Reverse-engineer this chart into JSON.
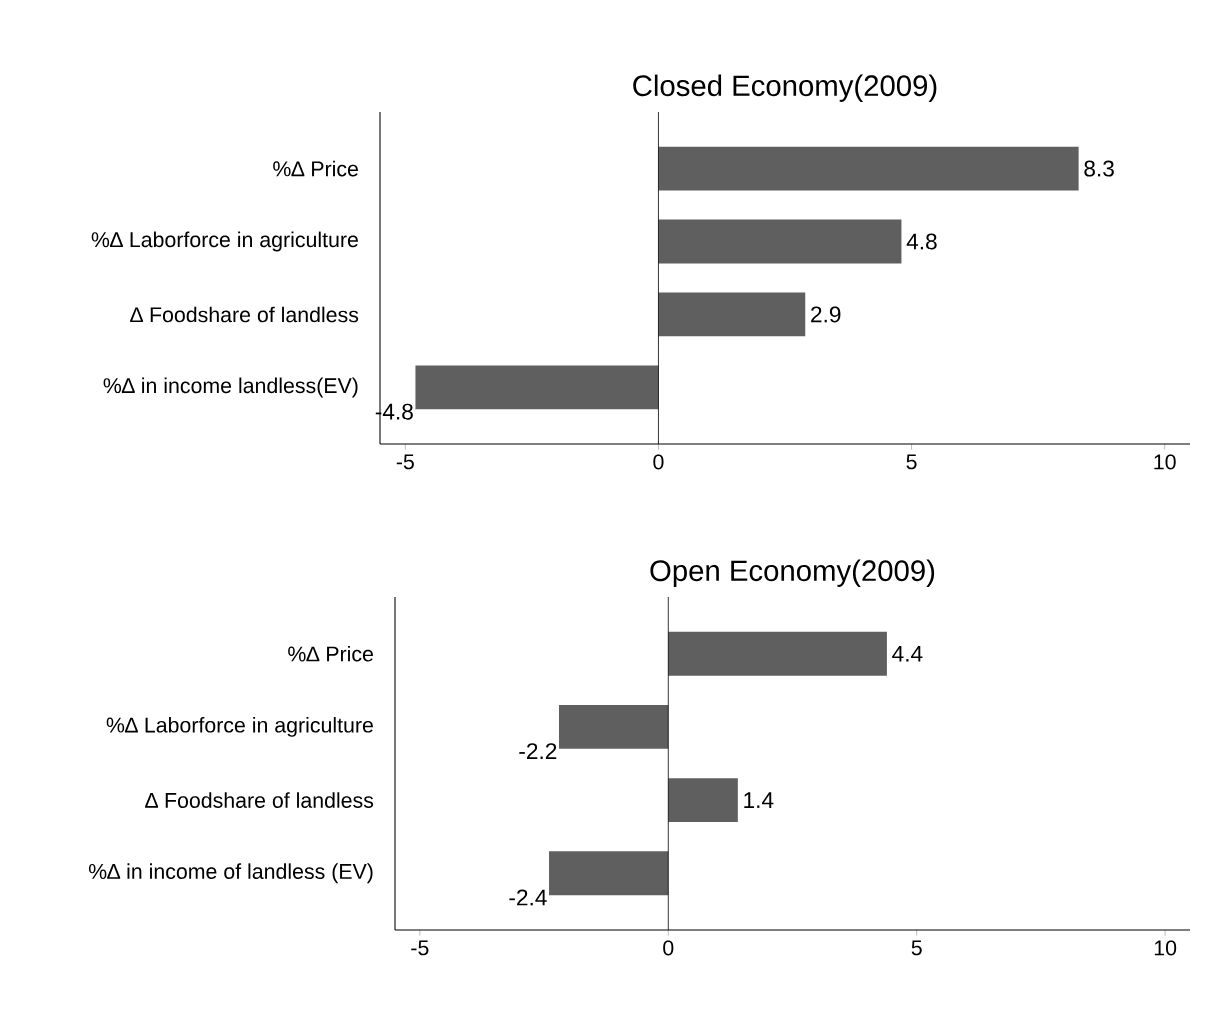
{
  "chart_data": [
    {
      "type": "bar",
      "orientation": "horizontal",
      "title": "Closed Economy(2009)",
      "categories": [
        "%∆ Price",
        "%∆ Laborforce in agriculture",
        "∆ Foodshare of landless",
        "%∆ in income landless(EV)"
      ],
      "values": [
        8.3,
        4.8,
        2.9,
        -4.8
      ],
      "color": "#5f5f5f",
      "data_labels": true,
      "xlim": [
        -5.5,
        10.5
      ],
      "xticks": [
        -5,
        0,
        5,
        10
      ],
      "ref_lines": [
        {
          "axis": "x",
          "value": 0
        }
      ]
    },
    {
      "type": "bar",
      "orientation": "horizontal",
      "title": "Open Economy(2009)",
      "categories": [
        "%∆ Price",
        "%∆ Laborforce in agriculture",
        "∆ Foodshare of landless",
        "%∆ in income of landless (EV)"
      ],
      "values": [
        4.4,
        -2.2,
        1.4,
        -2.4
      ],
      "color": "#5f5f5f",
      "data_labels": true,
      "xlim": [
        -5.5,
        10.5
      ],
      "xticks": [
        -5,
        0,
        5,
        10
      ],
      "ref_lines": [
        {
          "axis": "x",
          "value": 0
        }
      ]
    }
  ]
}
